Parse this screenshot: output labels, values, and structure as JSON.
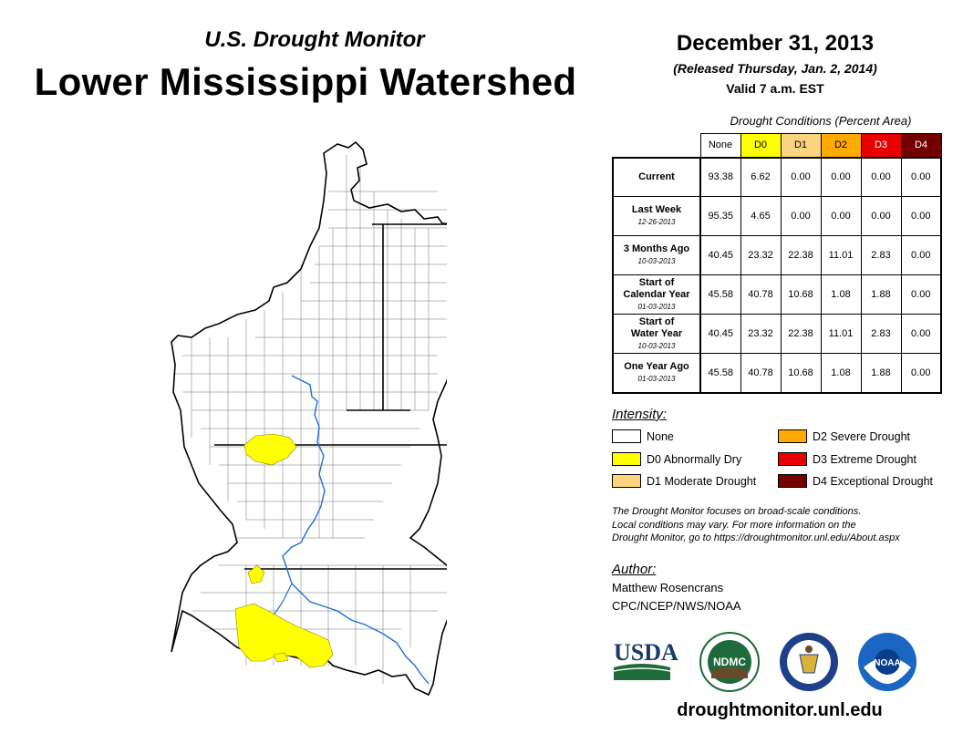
{
  "header": {
    "subtitle": "U.S. Drought Monitor",
    "title": "Lower Mississippi Watershed",
    "date": "December 31, 2013",
    "released": "(Released Thursday, Jan. 2, 2014)",
    "valid": "Valid 7 a.m. EST"
  },
  "table": {
    "caption": "Drought Conditions (Percent Area)",
    "categories": [
      "None",
      "D0",
      "D1",
      "D2",
      "D3",
      "D4"
    ],
    "category_colors": [
      "#ffffff",
      "#ffff00",
      "#fcd37f",
      "#ffaa00",
      "#e60000",
      "#730000"
    ],
    "rows": [
      {
        "label": "Current",
        "label2": "",
        "sub": "",
        "values": [
          "93.38",
          "6.62",
          "0.00",
          "0.00",
          "0.00",
          "0.00"
        ]
      },
      {
        "label": "Last Week",
        "label2": "",
        "sub": "12-26-2013",
        "values": [
          "95.35",
          "4.65",
          "0.00",
          "0.00",
          "0.00",
          "0.00"
        ]
      },
      {
        "label": "3 Months Ago",
        "label2": "",
        "sub": "10-03-2013",
        "values": [
          "40.45",
          "23.32",
          "22.38",
          "11.01",
          "2.83",
          "0.00"
        ]
      },
      {
        "label": "Start of",
        "label2": "Calendar Year",
        "sub": "01-03-2013",
        "values": [
          "45.58",
          "40.78",
          "10.68",
          "1.08",
          "1.88",
          "0.00"
        ]
      },
      {
        "label": "Start of",
        "label2": "Water Year",
        "sub": "10-03-2013",
        "values": [
          "40.45",
          "23.32",
          "22.38",
          "11.01",
          "2.83",
          "0.00"
        ]
      },
      {
        "label": "One Year Ago",
        "label2": "",
        "sub": "01-03-2013",
        "values": [
          "45.58",
          "40.78",
          "10.68",
          "1.08",
          "1.88",
          "0.00"
        ]
      }
    ]
  },
  "legend": {
    "heading": "Intensity:",
    "items": [
      {
        "label": "None",
        "color": "#ffffff"
      },
      {
        "label": "D0 Abnormally Dry",
        "color": "#ffff00"
      },
      {
        "label": "D1 Moderate Drought",
        "color": "#fcd37f"
      },
      {
        "label": "D2 Severe Drought",
        "color": "#ffaa00"
      },
      {
        "label": "D3 Extreme Drought",
        "color": "#e60000"
      },
      {
        "label": "D4 Exceptional Drought",
        "color": "#730000"
      }
    ]
  },
  "note": {
    "line1": "The Drought Monitor focuses on broad-scale conditions.",
    "line2": "Local conditions may vary. For more information on the",
    "line3": "Drought Monitor, go to https://droughtmonitor.unl.edu/About.aspx"
  },
  "author": {
    "heading": "Author:",
    "name": "Matthew Rosencrans",
    "org": "CPC/NCEP/NWS/NOAA"
  },
  "logos": {
    "usda": "USDA",
    "ndmc": "NDMC",
    "noaa": "NOAA"
  },
  "website": "droughtmonitor.unl.edu",
  "map": {
    "outline_color": "#000000",
    "river_color": "#1e6fd6",
    "drought_color": "#ffff00"
  }
}
